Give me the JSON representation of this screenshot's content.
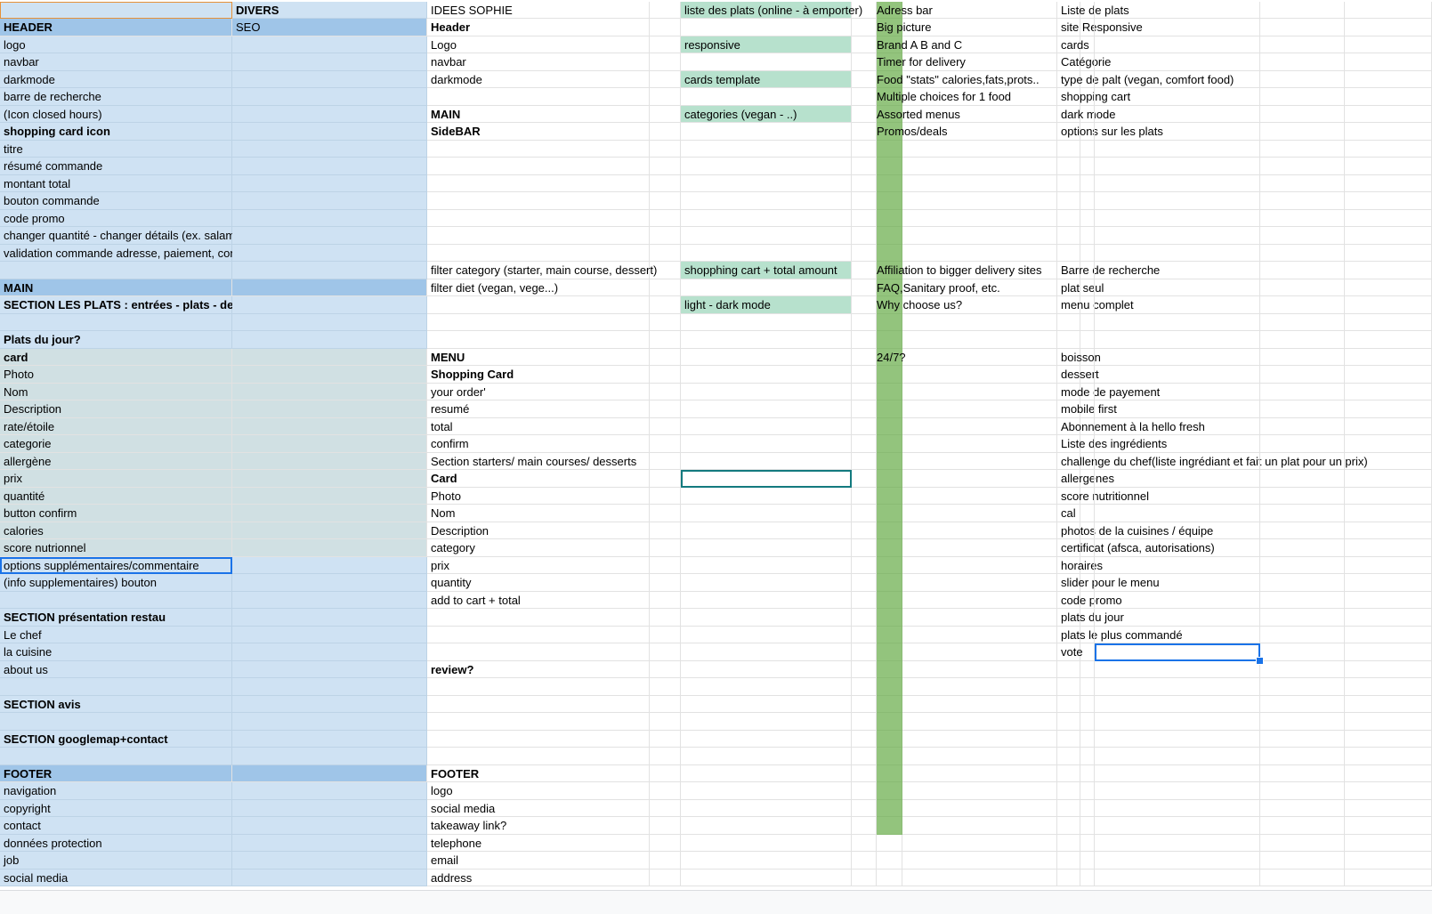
{
  "app": {
    "name": "Spreadsheet"
  },
  "colors": {
    "light_blue": "#cfe2f3",
    "header_blue": "#9fc5e8",
    "grey_blue": "#d0e0e3",
    "mint": "#b7e1cd",
    "green": "#93c47d",
    "selection": "#1a73e8",
    "teal_selection": "#137a7f",
    "a1_border": "#e69138"
  },
  "col_a": [
    "",
    "HEADER",
    "logo",
    "navbar",
    "darkmode",
    "barre de recherche",
    "(Icon closed hours)",
    "shopping card icon",
    "titre",
    "résumé commande",
    "montant total",
    "bouton commande",
    "code promo",
    "changer quantité - changer détails (ex. salami)",
    "validation commande  adresse, paiement, contact",
    "",
    "MAIN",
    "SECTION LES PLATS : entrées - plats - desserts",
    "",
    "Plats du jour?",
    "card",
    "Photo",
    "Nom",
    "Description",
    "rate/étoile",
    "categorie",
    "allergène",
    "prix",
    "quantité",
    "button confirm",
    "calories",
    "score nutrionnel",
    "options supplémentaires/commentaire",
    "(info supplementaires) bouton",
    "",
    "SECTION présentation restau",
    "Le chef",
    "la cuisine",
    "about us",
    "",
    "SECTION avis",
    "",
    "SECTION googlemap+contact",
    "",
    "FOOTER",
    "navigation",
    "copyright",
    "contact",
    "données protection",
    "job",
    "social media"
  ],
  "col_b": [
    "DIVERS",
    "SEO"
  ],
  "col_c": [
    "IDEES SOPHIE",
    "Header",
    "Logo",
    "navbar",
    "darkmode",
    "",
    "MAIN",
    "SideBAR",
    "",
    "",
    "",
    "",
    "",
    "",
    "",
    "filter category (starter, main course, dessert)",
    "filter diet (vegan, vege...)",
    "",
    "",
    "",
    "MENU",
    "Shopping Card",
    "your order'",
    "resumé",
    "total",
    "confirm",
    "Section starters/  main courses/ desserts",
    "Card",
    "Photo",
    "Nom",
    "Description",
    "category",
    "prix",
    "quantity",
    "add to cart + total",
    "",
    "",
    "",
    "review?",
    "",
    "",
    "",
    "",
    "",
    "FOOTER",
    "logo",
    "social media",
    "takeaway link?",
    "telephone",
    "email",
    "address"
  ],
  "col_e": [
    "liste des plats (online - à emporter)",
    "",
    "responsive",
    "",
    "cards template",
    "",
    "categories (vegan - ..)",
    "",
    "",
    "",
    "",
    "",
    "",
    "",
    "",
    "shopphing cart + total amount",
    "",
    "light - dark mode"
  ],
  "col_g": [
    "Adress bar",
    "Big picture",
    "Brand A B and C",
    "Timer for delivery",
    "Food \"stats\" calories,fats,prots..",
    "Multiple choices for 1 food",
    "Assorted menus",
    "Promos/deals",
    "",
    "",
    "",
    "",
    "",
    "",
    "",
    "Affiliation to bigger delivery sites",
    "FAQ,Sanitary proof, etc.",
    "Why choose us?",
    "",
    "",
    "24/7?"
  ],
  "col_i": [
    "Liste de plats",
    "site Responsive",
    "cards",
    "Catégorie",
    "type de palt (vegan, comfort food)",
    "shopping cart",
    "dark mode",
    "options sur les plats",
    "",
    "",
    "",
    "",
    "",
    "",
    "",
    "Barre de recherche",
    "plat seul",
    "menu complet",
    "",
    "",
    "boisson",
    "dessert",
    "mode de payement",
    "mobile first",
    "Abonnement à la hello fresh",
    "Liste des ingrédients",
    "challenge du chef(liste ingrédiant et fait un plat pour un prix)",
    "allergenes",
    "score nutritionnel",
    "cal",
    "photos de la cuisines / équipe",
    "certificat (afsca, autorisations)",
    "horaires",
    "slider pour le menu",
    "code promo",
    "plats du jour",
    "plats le plus commandé",
    "vote"
  ]
}
